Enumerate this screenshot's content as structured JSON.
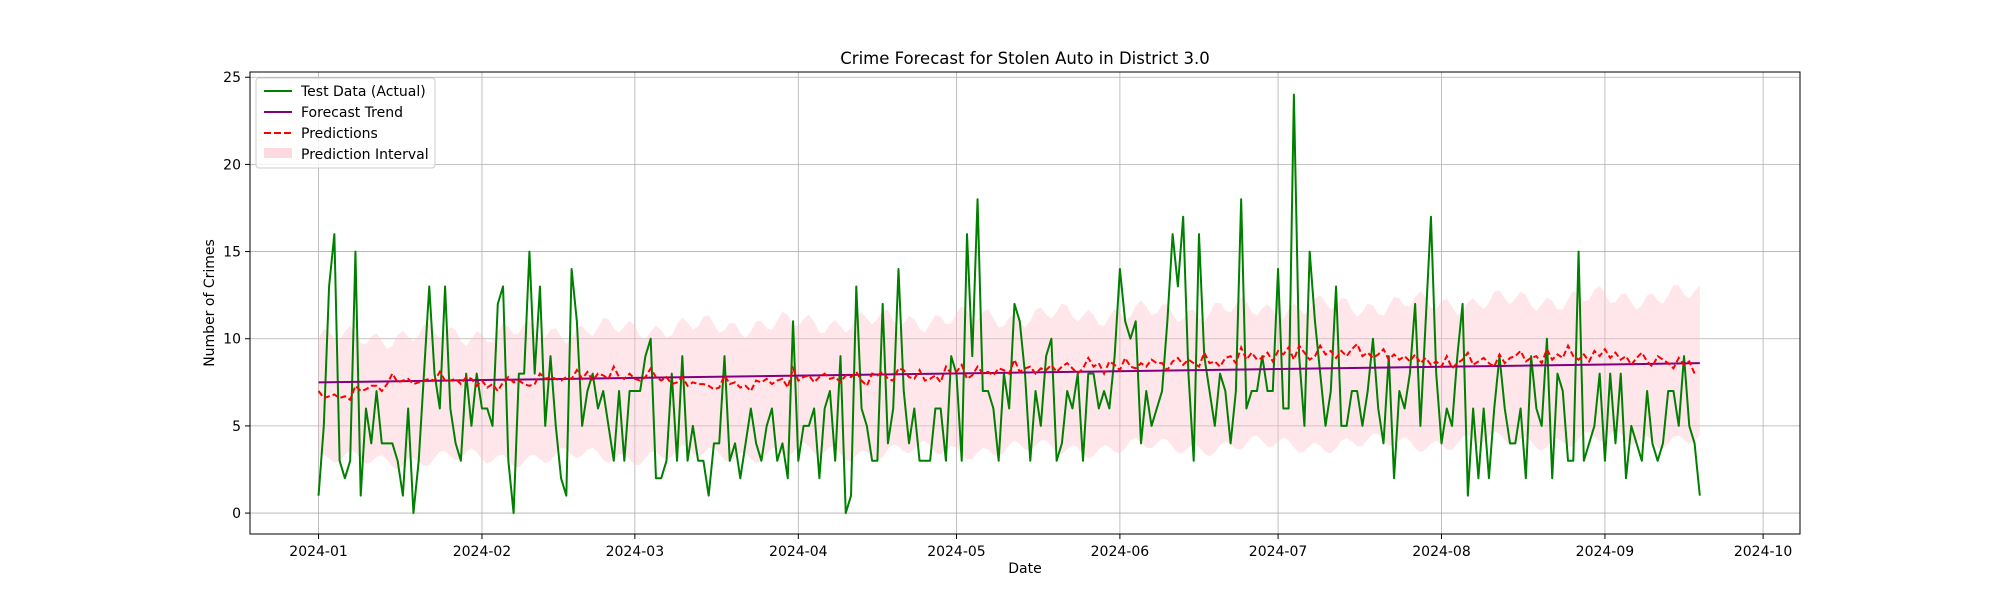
{
  "chart_data": {
    "type": "line",
    "title": "Crime Forecast for Stolen Auto in District 3.0",
    "xlabel": "Date",
    "ylabel": "Number of Crimes",
    "x_range": [
      "2023-12-19",
      "2024-10-08"
    ],
    "ylim": [
      -1.2,
      25.3
    ],
    "x_ticks": [
      "2024-01-01",
      "2024-02-01",
      "2024-03-01",
      "2024-04-01",
      "2024-05-01",
      "2024-06-01",
      "2024-07-01",
      "2024-08-01",
      "2024-09-01",
      "2024-10-01"
    ],
    "x_tick_labels": [
      "2024-01",
      "2024-02",
      "2024-03",
      "2024-04",
      "2024-05",
      "2024-06",
      "2024-07",
      "2024-08",
      "2024-09",
      "2024-10"
    ],
    "y_ticks": [
      0,
      5,
      10,
      15,
      20,
      25
    ],
    "grid": true,
    "legend_position": "top-left",
    "x_start": "2024-01-01",
    "x_step_days": 1,
    "series": [
      {
        "name": "Test Data (Actual)",
        "kind": "line",
        "color": "#008000",
        "values": [
          1,
          5,
          13,
          16,
          3,
          2,
          3,
          15,
          1,
          6,
          4,
          7,
          4,
          4,
          4,
          3,
          1,
          6,
          0,
          3,
          8,
          13,
          8,
          6,
          13,
          6,
          4,
          3,
          8,
          5,
          8,
          6,
          6,
          5,
          12,
          13,
          3,
          0,
          8,
          8,
          15,
          8,
          13,
          5,
          9,
          5,
          2,
          1,
          14,
          11,
          5,
          7,
          8,
          6,
          7,
          5,
          3,
          7,
          3,
          7,
          7,
          7,
          9,
          10,
          2,
          2,
          3,
          8,
          3,
          9,
          3,
          5,
          3,
          3,
          1,
          4,
          4,
          9,
          3,
          4,
          2,
          4,
          6,
          4,
          3,
          5,
          6,
          3,
          4,
          2,
          11,
          3,
          5,
          5,
          6,
          2,
          6,
          7,
          3,
          9,
          0,
          1,
          13,
          6,
          5,
          3,
          3,
          12,
          4,
          6,
          14,
          7,
          4,
          6,
          3,
          3,
          3,
          6,
          6,
          3,
          9,
          8,
          3,
          16,
          9,
          18,
          7,
          7,
          6,
          3,
          8,
          6,
          12,
          11,
          8,
          3,
          7,
          5,
          9,
          10,
          3,
          4,
          7,
          6,
          8,
          3,
          8,
          8,
          6,
          7,
          6,
          9,
          14,
          11,
          10,
          11,
          4,
          7,
          5,
          6,
          7,
          11,
          16,
          13,
          17,
          8,
          3,
          16,
          9,
          7,
          5,
          8,
          7,
          4,
          7,
          18,
          6,
          7,
          7,
          9,
          7,
          7,
          14,
          6,
          6,
          24,
          9,
          5,
          15,
          11,
          8,
          5,
          7,
          13,
          5,
          5,
          7,
          7,
          5,
          7,
          10,
          6,
          4,
          9,
          2,
          7,
          6,
          8,
          12,
          5,
          11,
          17,
          8,
          4,
          6,
          5,
          9,
          12,
          1,
          6,
          2,
          6,
          2,
          6,
          9,
          6,
          4,
          4,
          6,
          2,
          9,
          6,
          5,
          10,
          2,
          8,
          7,
          3,
          3,
          15,
          3,
          4,
          5,
          8,
          3,
          8,
          4,
          8,
          2,
          5,
          4,
          3,
          7,
          4,
          3,
          4,
          7,
          7,
          5,
          9,
          5,
          4,
          1
        ]
      },
      {
        "name": "Forecast Trend",
        "kind": "line",
        "color": "#800080",
        "start_value": 7.5,
        "end_value": 8.6
      },
      {
        "name": "Predictions",
        "kind": "dashed-line",
        "color": "#ff0000",
        "values": [
          7.0,
          6.6,
          6.7,
          6.8,
          6.6,
          6.7,
          6.5,
          7.3,
          7.0,
          7.1,
          7.3,
          7.3,
          7.0,
          7.4,
          8.0,
          7.5,
          7.6,
          7.7,
          7.4,
          7.5,
          7.6,
          7.7,
          7.6,
          8.1,
          7.6,
          7.6,
          7.7,
          7.4,
          7.8,
          7.7,
          7.3,
          7.6,
          7.2,
          7.4,
          7.0,
          7.5,
          7.8,
          7.5,
          7.6,
          7.4,
          7.3,
          7.4,
          8.0,
          7.7,
          7.8,
          7.7,
          7.6,
          7.8,
          7.7,
          8.2,
          7.7,
          8.1,
          7.6,
          8.0,
          7.9,
          7.7,
          8.4,
          7.8,
          7.7,
          8.0,
          7.7,
          7.6,
          7.8,
          8.3,
          7.8,
          7.6,
          7.8,
          7.4,
          7.5,
          7.8,
          7.3,
          7.5,
          7.4,
          7.4,
          7.3,
          7.1,
          7.2,
          7.9,
          7.4,
          7.5,
          7.2,
          7.3,
          7.0,
          7.6,
          7.5,
          7.7,
          7.4,
          7.6,
          7.7,
          7.2,
          8.3,
          7.6,
          7.8,
          7.9,
          7.5,
          7.8,
          8.0,
          7.7,
          7.8,
          7.5,
          7.9,
          7.8,
          8.1,
          7.6,
          7.3,
          8.0,
          7.9,
          8.1,
          7.7,
          7.6,
          8.3,
          8.2,
          7.8,
          7.7,
          8.2,
          7.6,
          7.7,
          7.9,
          7.5,
          8.4,
          8.0,
          8.1,
          8.5,
          7.7,
          7.9,
          8.4,
          8.0,
          8.1,
          7.9,
          8.3,
          8.2,
          8.0,
          8.8,
          8.1,
          8.3,
          8.4,
          8.0,
          8.3,
          8.2,
          8.5,
          8.1,
          8.4,
          8.6,
          8.3,
          8.0,
          8.3,
          8.9,
          8.4,
          8.6,
          8.0,
          8.7,
          8.5,
          8.2,
          8.9,
          8.4,
          8.3,
          8.6,
          8.4,
          8.8,
          8.6,
          8.6,
          8.2,
          8.7,
          8.9,
          8.5,
          8.8,
          8.6,
          8.4,
          9.2,
          8.6,
          8.7,
          8.4,
          8.9,
          9.0,
          8.6,
          9.5,
          8.8,
          9.2,
          8.8,
          8.9,
          9.2,
          8.7,
          9.3,
          9.1,
          9.5,
          8.8,
          9.6,
          9.2,
          8.8,
          9.0,
          9.6,
          9.1,
          9.3,
          8.9,
          9.3,
          9.0,
          9.4,
          9.7,
          9.0,
          9.2,
          8.9,
          9.1,
          9.4,
          8.8,
          9.1,
          8.8,
          9.0,
          8.7,
          9.1,
          8.6,
          8.9,
          8.5,
          8.7,
          8.4,
          9.0,
          8.3,
          8.6,
          8.8,
          9.2,
          8.5,
          8.7,
          8.9,
          8.6,
          8.4,
          9.1,
          8.6,
          8.9,
          9.0,
          9.3,
          8.7,
          8.9,
          9.0,
          8.6,
          9.4,
          8.8,
          9.1,
          8.9,
          9.6,
          9.0,
          8.8,
          9.1,
          8.7,
          9.3,
          9.0,
          9.4,
          8.9,
          9.2,
          8.8,
          9.0,
          8.5,
          8.9,
          9.2,
          8.7,
          8.4,
          9.0,
          8.8,
          8.6,
          8.3,
          8.9,
          8.5,
          8.7,
          8.0
        ]
      },
      {
        "name": "Prediction Interval",
        "kind": "band",
        "color": "#ffc0cb",
        "lower_start": 3.0,
        "lower_end": 4.3,
        "upper_start": 10.0,
        "upper_end": 12.5
      }
    ]
  }
}
